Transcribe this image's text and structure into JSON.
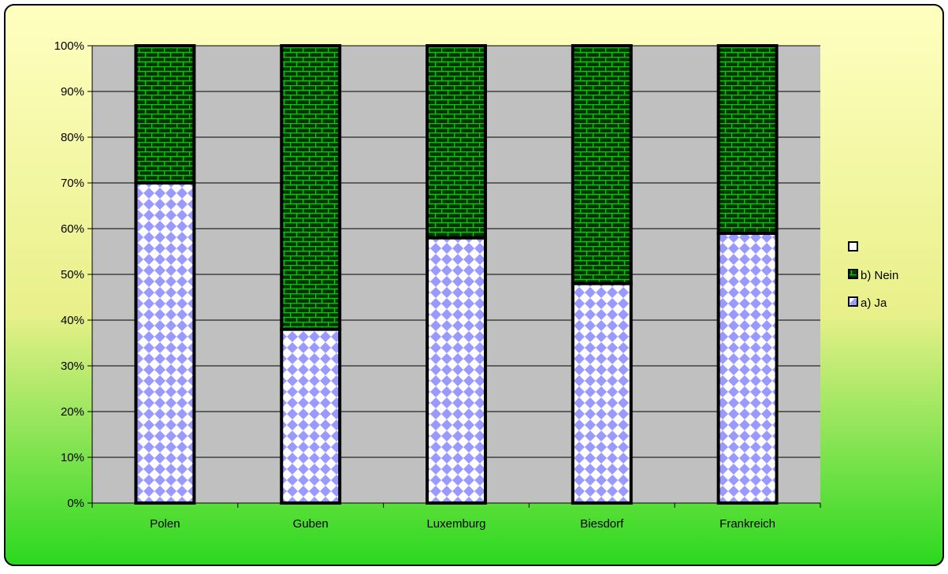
{
  "colors": {
    "background_top": "#ffffc0",
    "background_bottom": "#2bd81f",
    "plot_area": "#c0c0c0",
    "gridline": "#000000",
    "series_ja_fill": "#ffffff",
    "series_ja_pattern": "#9999ff",
    "series_nein_fill": "#003300",
    "series_nein_pattern": "#00cc00",
    "bar_border": "#000000"
  },
  "legend": {
    "placement": "right",
    "items": [
      {
        "label": "",
        "swatch": "blank"
      },
      {
        "label": "b) Nein",
        "swatch": "nein"
      },
      {
        "label": "a) Ja",
        "swatch": "ja"
      }
    ]
  },
  "chart_data": {
    "type": "bar",
    "stacked": "percent",
    "title": "",
    "xlabel": "",
    "ylabel": "",
    "categories": [
      "Polen",
      "Guben",
      "Luxemburg",
      "Biesdorf",
      "Frankreich"
    ],
    "series": [
      {
        "name": "a) Ja",
        "values": [
          70,
          38,
          58,
          48,
          59
        ]
      },
      {
        "name": "b) Nein",
        "values": [
          30,
          62,
          42,
          52,
          41
        ]
      }
    ],
    "ylim": [
      0,
      100
    ],
    "yticks": [
      "0%",
      "10%",
      "20%",
      "30%",
      "40%",
      "50%",
      "60%",
      "70%",
      "80%",
      "90%",
      "100%"
    ],
    "grid": true
  }
}
